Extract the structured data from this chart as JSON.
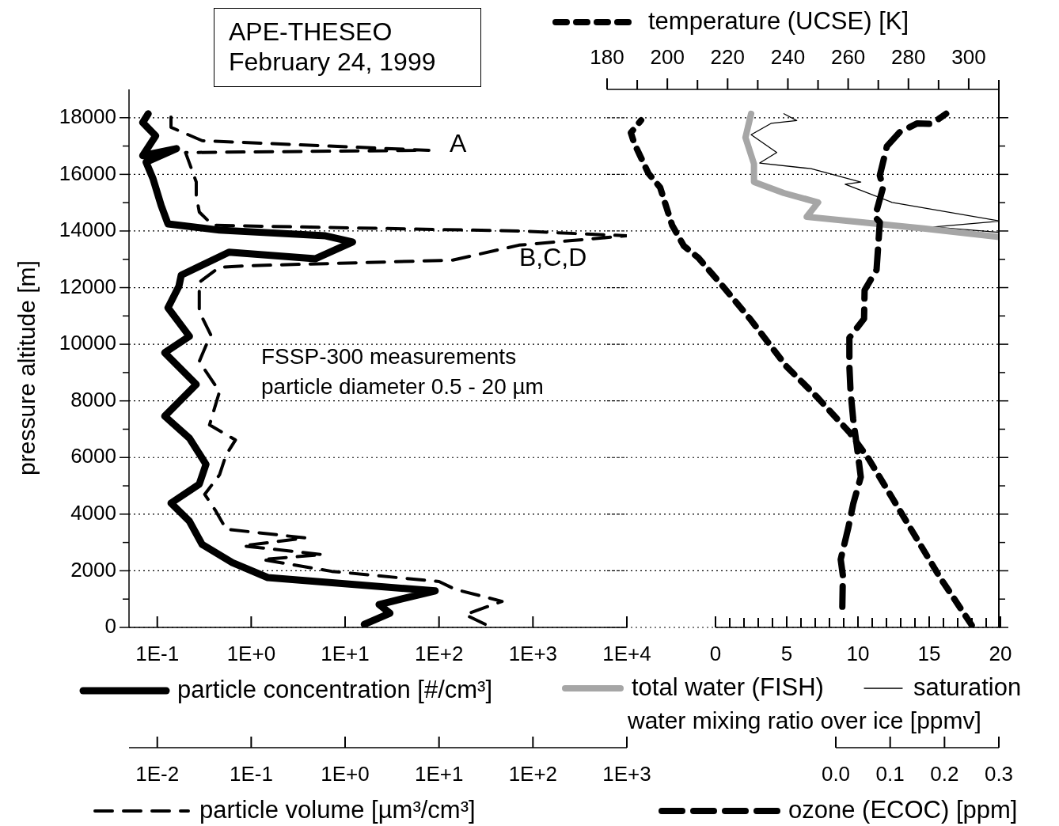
{
  "chart_data": [
    {
      "type": "line",
      "title": "APE-THESEO",
      "subtitle": "February 24, 1999",
      "ylabel": "pressure altitude [m]",
      "ylim": [
        0,
        19000
      ],
      "yticks": [
        0,
        {
          "value": 1000,
          "label": null
        },
        2000,
        {
          "value": 3000,
          "label": null
        },
        4000,
        {
          "value": 5000,
          "label": null
        },
        6000,
        {
          "value": 7000,
          "label": null
        },
        8000,
        {
          "value": 9000,
          "label": null
        },
        10000,
        {
          "value": 11000,
          "label": null
        },
        12000,
        {
          "value": 13000,
          "label": null
        },
        14000,
        {
          "value": 15000,
          "label": null
        },
        16000,
        {
          "value": 17000,
          "label": null
        },
        18000
      ],
      "xlim": [
        0.05,
        10000
      ],
      "xticks": [
        {
          "value": 0.1,
          "label": "1E-1"
        },
        {
          "value": 1,
          "label": "1E+0"
        },
        {
          "value": 10,
          "label": "1E+1"
        },
        {
          "value": 100,
          "label": "1E+2"
        },
        {
          "value": 1000,
          "label": "1E+3"
        },
        {
          "value": 10000,
          "label": "1E+4"
        }
      ],
      "log": "x",
      "grid": "y",
      "legend": "bottom",
      "annotations": [
        "FSSP-300 measurements",
        "particle diameter 0.5 - 20 µm",
        "A",
        "B,C,D"
      ],
      "series": [
        {
          "name": "particle concentration [#/cm³]",
          "color": "#000000",
          "line_style": "solid",
          "x": [
            16,
            30,
            23,
            91,
            1.5,
            0.63,
            0.3,
            0.22,
            0.14,
            0.28,
            0.33,
            0.22,
            0.12,
            0.26,
            0.12,
            0.22,
            0.13,
            0.17,
            0.18,
            0.58,
            4.8,
            12,
            6.2,
            0.46,
            0.13,
            0.11,
            0.09,
            0.076,
            0.16,
            0.07,
            0.096,
            0.07,
            0.08
          ],
          "values": [
            110,
            500,
            810,
            1290,
            1760,
            2290,
            2930,
            3750,
            4390,
            5060,
            5760,
            6680,
            7460,
            8580,
            9700,
            10280,
            11290,
            12050,
            12440,
            13250,
            13020,
            13610,
            13830,
            14030,
            14250,
            14900,
            15850,
            16430,
            16910,
            16660,
            17360,
            17830,
            18140
          ]
        }
      ]
    },
    {
      "type": "line",
      "ylim": [
        0,
        19000
      ],
      "xlim": [
        0.005,
        1000
      ],
      "xticks": [
        {
          "value": 0.01,
          "label": "1E-2"
        },
        {
          "value": 0.1,
          "label": "1E-1"
        },
        {
          "value": 1,
          "label": "1E+0"
        },
        {
          "value": 10,
          "label": "1E+1"
        },
        {
          "value": 100,
          "label": "1E+2"
        },
        {
          "value": 1000,
          "label": "1E+3"
        }
      ],
      "log": "x",
      "tick_labels": "x",
      "legend": "bottom",
      "series": [
        {
          "name": "particle volume [µm³/cm³]",
          "color": "#000000",
          "line_style": "dashed",
          "x": [
            31,
            19,
            47,
            15,
            10,
            0.72,
            0.13,
            0.58,
            0.081,
            0.38,
            0.054,
            0.042,
            0.032,
            0.046,
            0.054,
            0.068,
            0.036,
            0.046,
            0.028,
            0.037,
            0.028,
            0.028,
            0.046,
            0.087,
            14,
            71,
            1000,
            71,
            0.039,
            0.028,
            0.026,
            0.026,
            0.02,
            7.8,
            0.03,
            0.014,
            0.014
          ],
          "values": [
            110,
            450,
            920,
            1340,
            1620,
            1980,
            2400,
            2570,
            2880,
            3160,
            3470,
            4110,
            4700,
            5390,
            6090,
            6620,
            7150,
            8330,
            9390,
            10340,
            11150,
            12190,
            12720,
            12770,
            12970,
            13500,
            13830,
            14000,
            14200,
            14670,
            15260,
            15730,
            16770,
            16850,
            17190,
            17660,
            18080
          ]
        }
      ]
    },
    {
      "type": "line",
      "xlabel": "water mixing ratio over ice [ppmv]",
      "ylim": [
        0,
        19000
      ],
      "yticks": [
        0,
        {
          "value": 1000,
          "label": null
        },
        2000,
        {
          "value": 3000,
          "label": null
        },
        4000,
        {
          "value": 5000,
          "label": null
        },
        6000,
        {
          "value": 7000,
          "label": null
        },
        8000,
        {
          "value": 9000,
          "label": null
        },
        10000,
        {
          "value": 11000,
          "label": null
        },
        12000,
        {
          "value": 13000,
          "label": null
        },
        14000,
        {
          "value": 15000,
          "label": null
        },
        16000,
        {
          "value": 17000,
          "label": null
        },
        18000
      ],
      "xlim": [
        0,
        20
      ],
      "xticks": [
        0,
        {
          "value": 1,
          "label": null
        },
        {
          "value": 2,
          "label": null
        },
        {
          "value": 3,
          "label": null
        },
        {
          "value": 4,
          "label": null
        },
        5,
        {
          "value": 6,
          "label": null
        },
        {
          "value": 7,
          "label": null
        },
        {
          "value": 8,
          "label": null
        },
        {
          "value": 9,
          "label": null
        },
        10,
        {
          "value": 11,
          "label": null
        },
        {
          "value": 12,
          "label": null
        },
        {
          "value": 13,
          "label": null
        },
        {
          "value": 14,
          "label": null
        },
        15,
        {
          "value": 16,
          "label": null
        },
        {
          "value": 17,
          "label": null
        },
        {
          "value": 18,
          "label": null
        },
        {
          "value": 19,
          "label": null
        },
        20
      ],
      "tick_labels": "x",
      "grid": "y",
      "legend": "bottom",
      "series": [
        {
          "name": "total water (FISH)",
          "color": "#a6a6a6",
          "line_style": "solid",
          "x": [
            20,
            14.6,
            6.4,
            7.2,
            4.8,
            2.7,
            2.7,
            2.1,
            2.5
          ],
          "values": [
            13780,
            14090,
            14500,
            15010,
            15340,
            15730,
            16370,
            17300,
            18140
          ]
        },
        {
          "name": "saturation",
          "color": "#000000",
          "line_style": "solid",
          "x": [
            20,
            15.3,
            20,
            12.4,
            9.1,
            10.2,
            6.7,
            3.1,
            4.3,
            2.5,
            3.9,
            5.7,
            4.8
          ],
          "values": [
            13950,
            14140,
            14350,
            15010,
            15650,
            15730,
            16200,
            16400,
            16770,
            17400,
            17800,
            17900,
            18140
          ]
        }
      ]
    },
    {
      "type": "line",
      "ylim": [
        0,
        19000
      ],
      "xlim": [
        0,
        0.3
      ],
      "xticks": [
        {
          "value": 0,
          "label": "0.0"
        },
        {
          "value": 0.1,
          "label": "0.1"
        },
        {
          "value": 0.2,
          "label": "0.2"
        },
        {
          "value": 0.3,
          "label": "0.3"
        }
      ],
      "tick_labels": "x",
      "legend": "bottom",
      "series": [
        {
          "name": "ozone (ECOC) [ppm]",
          "color": "#000000",
          "line_style": "dashed",
          "x": [
            0.012,
            0.013,
            0.009,
            0.023,
            0.032,
            0.046,
            0.038,
            0.032,
            0.027,
            0.025,
            0.025,
            0.052,
            0.053,
            0.075,
            0.081,
            0.072,
            0.087,
            0.081,
            0.094,
            0.118,
            0.15,
            0.176,
            0.203
          ],
          "values": [
            730,
            1840,
            2400,
            3520,
            4360,
            5310,
            6510,
            7350,
            8380,
            9220,
            10230,
            10900,
            11910,
            12630,
            14310,
            14500,
            15540,
            15960,
            16990,
            17500,
            17800,
            17780,
            18140
          ]
        }
      ]
    },
    {
      "type": "line",
      "ylim": [
        0,
        19000
      ],
      "xlim": [
        180,
        310
      ],
      "xticks": [
        180,
        {
          "value": 190,
          "label": null
        },
        200,
        {
          "value": 210,
          "label": null
        },
        220,
        {
          "value": 230,
          "label": null
        },
        240,
        {
          "value": 250,
          "label": null
        },
        260,
        {
          "value": 270,
          "label": null
        },
        280,
        {
          "value": 290,
          "label": null
        },
        300,
        {
          "value": 310,
          "label": null
        }
      ],
      "tick_labels": "x",
      "legend": "top",
      "series": [
        {
          "name": "temperature (UCSE) [K]",
          "color": "#000000",
          "line_style": "dashed",
          "x": [
            301,
            290.5,
            282.6,
            274.7,
            266.8,
            260.5,
            250,
            239.5,
            227.4,
            218.4,
            210.3,
            205.5,
            201.6,
            197.6,
            193.7,
            189,
            187.9,
            191.3
          ],
          "values": [
            80,
            1760,
            3160,
            4560,
            5950,
            6880,
            8100,
            9220,
            10900,
            12050,
            13050,
            13470,
            14200,
            15540,
            16040,
            17100,
            17470,
            17910
          ]
        }
      ]
    }
  ]
}
